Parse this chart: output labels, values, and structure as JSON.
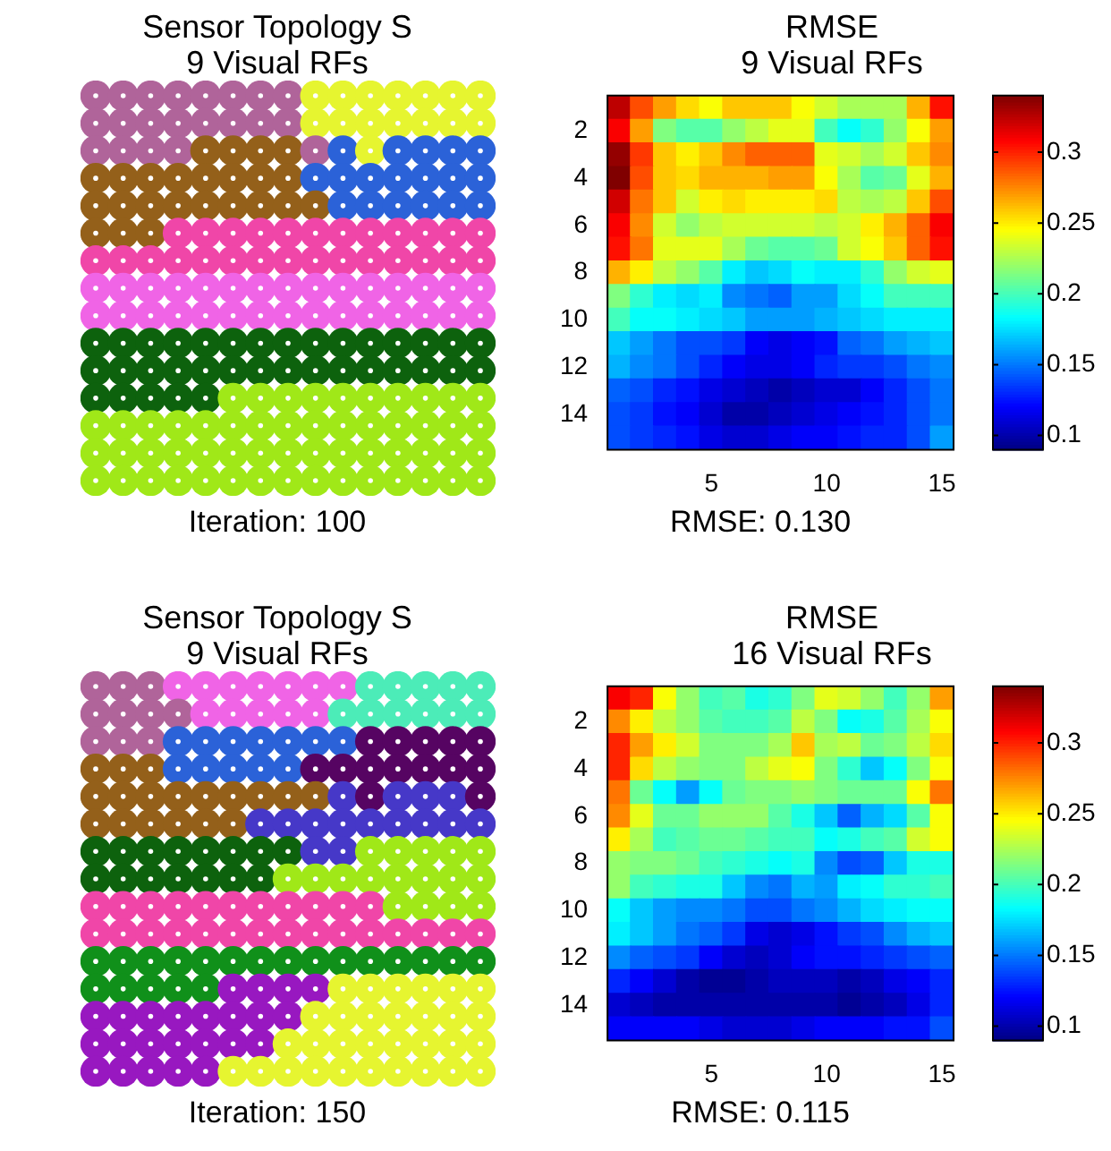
{
  "chart_data": [
    {
      "type": "other",
      "title": "Sensor Topology S",
      "subtitle": "9 Visual RFs",
      "annotations": [
        "Iteration: 100"
      ]
    },
    {
      "type": "heatmap",
      "title": "RMSE",
      "subtitle": "9 Visual RFs",
      "annotations": [
        "RMSE: 0.130"
      ],
      "categories": [
        null,
        null,
        null,
        null,
        "5",
        null,
        null,
        null,
        null,
        "10",
        null,
        null,
        null,
        null,
        "15"
      ],
      "y_categories": [
        null,
        "2",
        null,
        "4",
        null,
        "6",
        null,
        "8",
        null,
        "10",
        null,
        "12",
        null,
        "14",
        null
      ],
      "clim": [
        0.09,
        0.34
      ],
      "cticks": [
        0.1,
        0.15,
        0.2,
        0.25,
        0.3
      ],
      "cells": [
        [
          0.325,
          0.29,
          0.27,
          0.255,
          0.245,
          0.26,
          0.26,
          0.26,
          0.245,
          0.235,
          0.225,
          0.225,
          0.225,
          0.265,
          0.305
        ],
        [
          0.31,
          0.27,
          0.215,
          0.205,
          0.205,
          0.22,
          0.23,
          0.24,
          0.24,
          0.2,
          0.185,
          0.195,
          0.22,
          0.245,
          0.27
        ],
        [
          0.335,
          0.295,
          0.26,
          0.25,
          0.26,
          0.275,
          0.285,
          0.285,
          0.285,
          0.24,
          0.235,
          0.225,
          0.235,
          0.26,
          0.275
        ],
        [
          0.34,
          0.29,
          0.26,
          0.255,
          0.265,
          0.265,
          0.265,
          0.27,
          0.27,
          0.245,
          0.225,
          0.205,
          0.21,
          0.24,
          0.265
        ],
        [
          0.32,
          0.28,
          0.26,
          0.235,
          0.25,
          0.255,
          0.25,
          0.25,
          0.25,
          0.255,
          0.23,
          0.225,
          0.23,
          0.26,
          0.29
        ],
        [
          0.31,
          0.275,
          0.235,
          0.22,
          0.23,
          0.235,
          0.235,
          0.235,
          0.235,
          0.23,
          0.235,
          0.25,
          0.265,
          0.285,
          0.31
        ],
        [
          0.305,
          0.28,
          0.24,
          0.24,
          0.24,
          0.225,
          0.21,
          0.205,
          0.205,
          0.21,
          0.235,
          0.245,
          0.26,
          0.285,
          0.305
        ],
        [
          0.265,
          0.25,
          0.23,
          0.22,
          0.205,
          0.18,
          0.17,
          0.175,
          0.185,
          0.18,
          0.18,
          0.195,
          0.22,
          0.235,
          0.24
        ],
        [
          0.215,
          0.195,
          0.18,
          0.175,
          0.18,
          0.155,
          0.15,
          0.145,
          0.16,
          0.16,
          0.175,
          0.185,
          0.2,
          0.2,
          0.2
        ],
        [
          0.2,
          0.185,
          0.185,
          0.18,
          0.175,
          0.17,
          0.16,
          0.16,
          0.16,
          0.165,
          0.17,
          0.175,
          0.18,
          0.18,
          0.18
        ],
        [
          0.17,
          0.16,
          0.15,
          0.14,
          0.14,
          0.135,
          0.12,
          0.115,
          0.12,
          0.125,
          0.145,
          0.15,
          0.16,
          0.165,
          0.17
        ],
        [
          0.165,
          0.155,
          0.15,
          0.14,
          0.13,
          0.12,
          0.115,
          0.115,
          0.12,
          0.13,
          0.135,
          0.135,
          0.14,
          0.15,
          0.155
        ],
        [
          0.145,
          0.14,
          0.13,
          0.125,
          0.115,
          0.11,
          0.105,
          0.1,
          0.105,
          0.11,
          0.11,
          0.12,
          0.13,
          0.14,
          0.15
        ],
        [
          0.14,
          0.135,
          0.125,
          0.12,
          0.11,
          0.1,
          0.1,
          0.105,
          0.11,
          0.115,
          0.12,
          0.125,
          0.13,
          0.14,
          0.15
        ],
        [
          0.14,
          0.135,
          0.13,
          0.125,
          0.115,
          0.11,
          0.11,
          0.115,
          0.12,
          0.12,
          0.125,
          0.13,
          0.13,
          0.14,
          0.16
        ]
      ]
    },
    {
      "type": "other",
      "title": "Sensor Topology S",
      "subtitle": "9 Visual RFs",
      "annotations": [
        "Iteration: 150"
      ]
    },
    {
      "type": "heatmap",
      "title": "RMSE",
      "subtitle": "16 Visual RFs",
      "annotations": [
        "RMSE: 0.115"
      ],
      "categories": [
        null,
        null,
        null,
        null,
        "5",
        null,
        null,
        null,
        null,
        "10",
        null,
        null,
        null,
        null,
        "15"
      ],
      "y_categories": [
        null,
        "2",
        null,
        "4",
        null,
        "6",
        null,
        "8",
        null,
        "10",
        null,
        "12",
        null,
        "14",
        null
      ],
      "clim": [
        0.09,
        0.34
      ],
      "cticks": [
        0.1,
        0.15,
        0.2,
        0.25,
        0.3
      ],
      "cells": [
        [
          0.31,
          0.3,
          0.245,
          0.22,
          0.2,
          0.205,
          0.19,
          0.195,
          0.215,
          0.24,
          0.235,
          0.22,
          0.2,
          0.22,
          0.27
        ],
        [
          0.275,
          0.25,
          0.23,
          0.22,
          0.205,
          0.2,
          0.2,
          0.205,
          0.23,
          0.215,
          0.185,
          0.19,
          0.205,
          0.225,
          0.245
        ],
        [
          0.3,
          0.27,
          0.25,
          0.235,
          0.215,
          0.215,
          0.215,
          0.225,
          0.26,
          0.225,
          0.23,
          0.21,
          0.215,
          0.23,
          0.255
        ],
        [
          0.3,
          0.255,
          0.23,
          0.22,
          0.215,
          0.215,
          0.23,
          0.24,
          0.245,
          0.215,
          0.195,
          0.17,
          0.185,
          0.215,
          0.245
        ],
        [
          0.28,
          0.21,
          0.185,
          0.16,
          0.185,
          0.21,
          0.215,
          0.215,
          0.22,
          0.215,
          0.21,
          0.21,
          0.21,
          0.245,
          0.28
        ],
        [
          0.275,
          0.24,
          0.21,
          0.21,
          0.22,
          0.22,
          0.22,
          0.205,
          0.19,
          0.17,
          0.145,
          0.165,
          0.175,
          0.205,
          0.245
        ],
        [
          0.25,
          0.225,
          0.2,
          0.205,
          0.21,
          0.21,
          0.205,
          0.2,
          0.2,
          0.185,
          0.19,
          0.2,
          0.205,
          0.235,
          0.245
        ],
        [
          0.22,
          0.215,
          0.215,
          0.21,
          0.2,
          0.195,
          0.19,
          0.185,
          0.19,
          0.155,
          0.14,
          0.145,
          0.17,
          0.19,
          0.19
        ],
        [
          0.22,
          0.2,
          0.195,
          0.19,
          0.19,
          0.17,
          0.155,
          0.15,
          0.165,
          0.16,
          0.18,
          0.185,
          0.195,
          0.195,
          0.2
        ],
        [
          0.185,
          0.17,
          0.16,
          0.155,
          0.155,
          0.15,
          0.14,
          0.14,
          0.15,
          0.155,
          0.165,
          0.175,
          0.18,
          0.185,
          0.185
        ],
        [
          0.18,
          0.17,
          0.16,
          0.15,
          0.145,
          0.135,
          0.115,
          0.11,
          0.115,
          0.125,
          0.135,
          0.14,
          0.155,
          0.165,
          0.17
        ],
        [
          0.155,
          0.145,
          0.14,
          0.135,
          0.12,
          0.11,
          0.105,
          0.11,
          0.12,
          0.125,
          0.125,
          0.13,
          0.135,
          0.14,
          0.145
        ],
        [
          0.13,
          0.12,
          0.11,
          0.1,
          0.095,
          0.095,
          0.1,
          0.105,
          0.105,
          0.105,
          0.1,
          0.105,
          0.115,
          0.12,
          0.13
        ],
        [
          0.11,
          0.105,
          0.1,
          0.1,
          0.1,
          0.1,
          0.1,
          0.1,
          0.1,
          0.1,
          0.095,
          0.1,
          0.105,
          0.115,
          0.13
        ],
        [
          0.12,
          0.12,
          0.12,
          0.12,
          0.115,
          0.11,
          0.11,
          0.11,
          0.115,
          0.12,
          0.12,
          0.12,
          0.125,
          0.125,
          0.14
        ]
      ]
    }
  ]
}
